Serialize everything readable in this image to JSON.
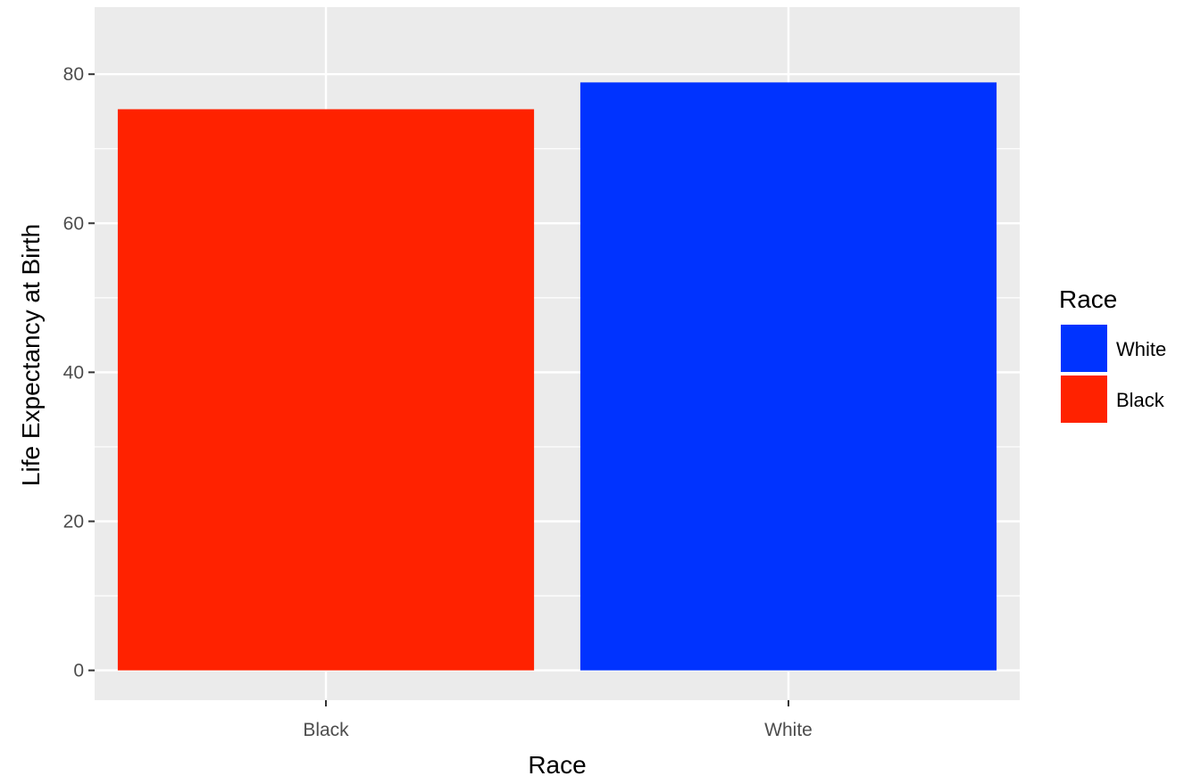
{
  "chart_data": {
    "type": "bar",
    "title": "",
    "xlabel": "Race",
    "ylabel": "Life Expectancy at Birth",
    "categories": [
      "Black",
      "White"
    ],
    "values": [
      75.3,
      78.9
    ],
    "bar_colors": [
      "#FF2200",
      "#0033FF"
    ],
    "ylim": [
      -4,
      89
    ],
    "yticks": [
      0,
      20,
      40,
      60,
      80
    ],
    "ytick_labels": [
      "0",
      "20",
      "40",
      "60",
      "80"
    ],
    "grid": true,
    "panel_background": "#EBEBEB",
    "grid_color": "#FFFFFF",
    "legend": {
      "title": "Race",
      "placement": "right",
      "entries": [
        {
          "label": "White",
          "color": "#0033FF"
        },
        {
          "label": "Black",
          "color": "#FF2200"
        }
      ]
    }
  }
}
